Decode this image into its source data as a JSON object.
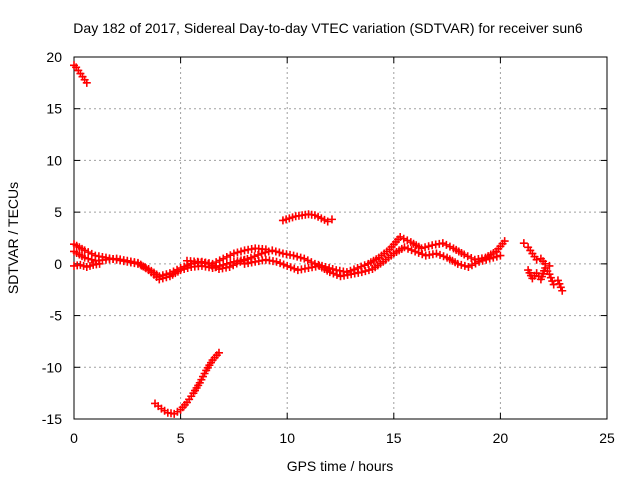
{
  "chart_data": {
    "type": "scatter",
    "title": "Day 182 of 2017, Sidereal Day-to-day VTEC variation (SDTVAR) for receiver sun6",
    "xlabel": "GPS time / hours",
    "ylabel": "SDTVAR / TECUs",
    "xlim": [
      0,
      25
    ],
    "ylim": [
      -15,
      20
    ],
    "xticks": [
      0,
      5,
      10,
      15,
      20,
      25
    ],
    "yticks": [
      -15,
      -10,
      -5,
      0,
      5,
      10,
      15,
      20
    ],
    "xtick_labels": [
      "0",
      "5",
      "10",
      "15",
      "20",
      "25"
    ],
    "ytick_labels": [
      "-15",
      "-10",
      "-5",
      "0",
      "5",
      "10",
      "15",
      "20"
    ],
    "grid": true,
    "legend": "none",
    "marker": "plus",
    "color": "#ff0000",
    "series": [
      {
        "name": "arc-top-left",
        "x": [
          0.0,
          0.1,
          0.2,
          0.3,
          0.4,
          0.5,
          0.6
        ],
        "y": [
          19.2,
          19.0,
          18.7,
          18.4,
          18.1,
          17.8,
          17.5
        ]
      },
      {
        "name": "arc-a",
        "x": [
          0.0,
          0.5,
          1.0,
          1.5,
          2.0,
          2.5,
          3.0,
          3.5,
          4.0,
          4.5,
          5.0,
          5.5,
          6.0,
          6.5,
          7.0,
          7.5,
          8.0,
          8.5,
          9.0
        ],
        "y": [
          1.9,
          1.3,
          0.8,
          0.6,
          0.4,
          0.2,
          0.0,
          -0.5,
          -1.2,
          -0.9,
          -0.4,
          0.0,
          0.2,
          0.0,
          0.5,
          1.0,
          1.3,
          1.5,
          1.4
        ]
      },
      {
        "name": "arc-b",
        "x": [
          0.0,
          0.5,
          1.0,
          1.5,
          2.0,
          2.5,
          3.0,
          3.5,
          4.0,
          4.5,
          5.0,
          5.5,
          6.0,
          6.5,
          7.0,
          7.5,
          8.0
        ],
        "y": [
          1.2,
          0.6,
          0.3,
          0.4,
          0.5,
          0.3,
          0.1,
          -0.6,
          -1.5,
          -1.2,
          -0.6,
          -0.3,
          -0.2,
          -0.4,
          -0.1,
          0.2,
          0.4
        ]
      },
      {
        "name": "arc-c",
        "x": [
          0.0,
          0.3,
          0.6,
          0.9,
          1.2
        ],
        "y": [
          -0.2,
          -0.1,
          -0.3,
          -0.1,
          0.0
        ]
      },
      {
        "name": "arc-d",
        "x": [
          5.3,
          5.8,
          6.3,
          6.8,
          7.3,
          7.8,
          8.3,
          8.8,
          9.3,
          9.8,
          10.3,
          10.8,
          11.3,
          11.8,
          12.3,
          12.8,
          13.3,
          13.8,
          14.3,
          14.8,
          15.3,
          15.8,
          16.3,
          16.8,
          17.3,
          17.8,
          18.3,
          18.8,
          19.3,
          19.8,
          20.2
        ],
        "y": [
          0.3,
          0.2,
          0.0,
          -0.5,
          -0.3,
          0.2,
          0.6,
          1.0,
          1.3,
          1.0,
          0.8,
          0.5,
          0.0,
          -0.3,
          -0.6,
          -0.8,
          -0.4,
          0.0,
          0.6,
          1.4,
          2.6,
          2.1,
          1.5,
          1.8,
          2.0,
          1.5,
          0.9,
          0.4,
          0.6,
          1.2,
          2.2
        ]
      },
      {
        "name": "arc-e",
        "x": [
          8.0,
          8.5,
          9.0,
          9.5,
          10.0,
          10.5,
          11.0,
          11.5,
          12.0,
          12.5,
          13.0,
          13.5,
          14.0,
          14.5,
          15.0,
          15.5,
          16.0,
          16.5,
          17.0,
          17.5,
          18.0,
          18.5,
          19.0,
          19.5,
          20.0
        ],
        "y": [
          0.0,
          0.2,
          0.4,
          0.2,
          -0.2,
          -0.6,
          -0.4,
          -0.2,
          -0.8,
          -1.2,
          -1.0,
          -0.8,
          -0.5,
          0.2,
          1.0,
          1.6,
          1.2,
          0.8,
          1.0,
          0.6,
          0.0,
          -0.3,
          0.2,
          0.5,
          0.8
        ]
      },
      {
        "name": "arc-f",
        "x": [
          3.8,
          4.1,
          4.4,
          4.7,
          5.0,
          5.3,
          5.6,
          5.9,
          6.2,
          6.5,
          6.8
        ],
        "y": [
          -13.5,
          -14.0,
          -14.4,
          -14.5,
          -14.1,
          -13.4,
          -12.5,
          -11.5,
          -10.3,
          -9.3,
          -8.6
        ]
      },
      {
        "name": "arc-g",
        "x": [
          9.8,
          10.1,
          10.4,
          10.7,
          11.0,
          11.3,
          11.6,
          11.9,
          12.1
        ],
        "y": [
          4.2,
          4.4,
          4.6,
          4.7,
          4.8,
          4.7,
          4.4,
          4.1,
          4.3
        ]
      },
      {
        "name": "arc-h",
        "x": [
          21.1,
          21.3,
          21.5,
          21.7
        ],
        "y": [
          2.0,
          1.6,
          1.0,
          0.4
        ]
      },
      {
        "name": "arc-i",
        "x": [
          21.3,
          21.5,
          21.7,
          21.9,
          22.1,
          22.3,
          22.5,
          22.7,
          22.9
        ],
        "y": [
          -0.6,
          -1.4,
          -0.9,
          -1.5,
          -0.4,
          -1.0,
          -2.0,
          -1.6,
          -2.6
        ]
      },
      {
        "name": "arc-j",
        "x": [
          21.9,
          22.1,
          22.3
        ],
        "y": [
          0.5,
          0.0,
          -0.2
        ]
      }
    ]
  }
}
